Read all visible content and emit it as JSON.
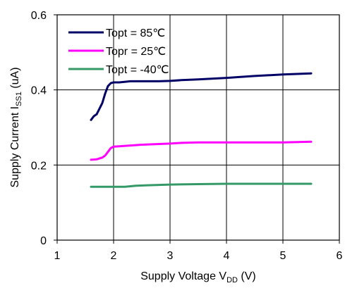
{
  "chart_data": {
    "type": "line",
    "xlabel": {
      "main": "Supply Voltage V",
      "sub": "DD",
      "tail": " (V)"
    },
    "ylabel": {
      "main": "Supply Current I",
      "sub": "SS1",
      "tail": " (uA)"
    },
    "xlim": [
      1,
      6
    ],
    "ylim": [
      0,
      0.6
    ],
    "xticks": [
      "1",
      "2",
      "3",
      "4",
      "5",
      "6"
    ],
    "yticks": [
      "0",
      "0.2",
      "0.4",
      "0.6"
    ],
    "grid": true,
    "legend_position": "top-left",
    "series": [
      {
        "name": "Topt = 85℃",
        "color": "#000066",
        "x": [
          1.6,
          1.65,
          1.7,
          1.75,
          1.8,
          1.85,
          1.9,
          1.95,
          2.0,
          2.1,
          2.3,
          2.5,
          2.8,
          3.0,
          3.2,
          3.5,
          4.0,
          4.5,
          5.0,
          5.5
        ],
        "y": [
          0.32,
          0.33,
          0.335,
          0.35,
          0.365,
          0.39,
          0.41,
          0.418,
          0.42,
          0.42,
          0.423,
          0.423,
          0.423,
          0.424,
          0.426,
          0.428,
          0.432,
          0.437,
          0.441,
          0.444
        ]
      },
      {
        "name": "Topr = 25℃",
        "color": "#ff00ff",
        "x": [
          1.6,
          1.7,
          1.8,
          1.85,
          1.9,
          1.95,
          2.0,
          2.1,
          2.3,
          2.5,
          3.0,
          3.2,
          3.5,
          4.0,
          4.5,
          5.0,
          5.5
        ],
        "y": [
          0.214,
          0.215,
          0.22,
          0.225,
          0.235,
          0.245,
          0.249,
          0.25,
          0.252,
          0.254,
          0.257,
          0.259,
          0.26,
          0.26,
          0.26,
          0.26,
          0.262
        ]
      },
      {
        "name": "Topt = -40℃",
        "color": "#339966",
        "x": [
          1.6,
          1.8,
          2.0,
          2.2,
          2.4,
          2.6,
          3.0,
          3.5,
          4.0,
          4.5,
          5.0,
          5.5
        ],
        "y": [
          0.142,
          0.142,
          0.142,
          0.142,
          0.145,
          0.146,
          0.148,
          0.149,
          0.15,
          0.15,
          0.15,
          0.15
        ]
      }
    ]
  }
}
